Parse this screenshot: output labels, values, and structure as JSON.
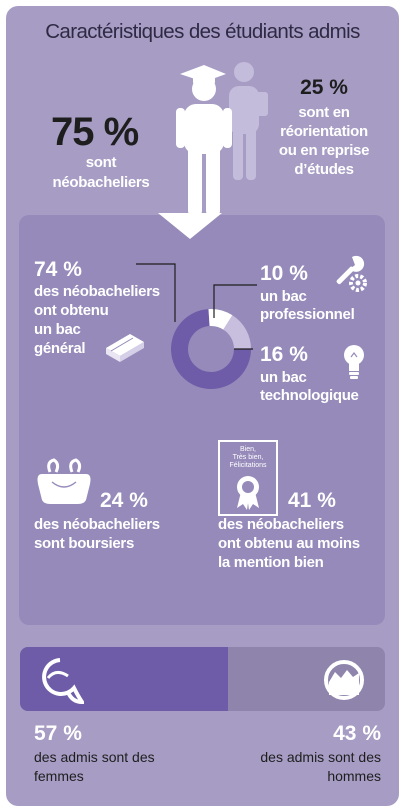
{
  "title": "Caractéristiques des étudiants admis",
  "top": {
    "neo_pct": "75 %",
    "neo_label_1": "sont",
    "neo_label_2": "néobacheliers",
    "reo_pct": "25 %",
    "reo_label_1": "sont en",
    "reo_label_2": "réorientation",
    "reo_label_3": "ou en reprise",
    "reo_label_4": "d’études"
  },
  "bac": {
    "general_pct": "74 %",
    "general_label_1": "des néobacheliers",
    "general_label_2": "ont obtenu",
    "general_label_3": "un bac",
    "general_label_4": "général",
    "pro_pct": "10 %",
    "pro_label_1": "un bac",
    "pro_label_2": "professionnel",
    "techno_pct": "16 %",
    "techno_label_1": "un bac",
    "techno_label_2": "technologique"
  },
  "boursiers": {
    "pct": "24 %",
    "label_1": "des néobacheliers",
    "label_2": "sont boursiers"
  },
  "mention": {
    "pct": "41 %",
    "label_1": "des néobacheliers",
    "label_2": "ont obtenu au moins",
    "label_3": "la mention bien",
    "cert_line_1": "Bien,",
    "cert_line_2": "Très bien,",
    "cert_line_3": "Félicitations"
  },
  "genre": {
    "femmes_pct": "57 %",
    "femmes_label_1": "des admis sont des",
    "femmes_label_2": "femmes",
    "hommes_pct": "43 %",
    "hommes_label_1": "des admis sont des",
    "hommes_label_2": "hommes"
  },
  "chart_data": [
    {
      "type": "pie",
      "categories": [
        "néobacheliers",
        "réorientation ou reprise d’études"
      ],
      "values": [
        75,
        25
      ]
    },
    {
      "type": "pie",
      "categories": [
        "bac général",
        "bac professionnel",
        "bac technologique"
      ],
      "values": [
        74,
        10,
        16
      ]
    },
    {
      "type": "bar",
      "categories": [
        "femmes",
        "hommes"
      ],
      "values": [
        57,
        43
      ]
    }
  ],
  "colors": {
    "card": "#a79cc4",
    "inner_panel": "#968aba",
    "dark_purple": "#6e5ca8",
    "light_purple": "#c7bfdd",
    "white": "#ffffff",
    "title_text": "#2f2a44",
    "main_text": "#1e1e1e"
  }
}
